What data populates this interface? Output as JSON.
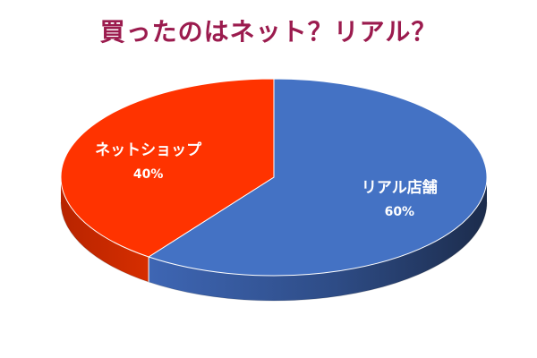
{
  "chart_data": {
    "type": "pie",
    "title": "買ったのはネット？リアル？",
    "title_color": "#9B1B4E",
    "slices": [
      {
        "label": "リアル店舗",
        "value": 60,
        "value_label": "60%",
        "color": "#4472C4"
      },
      {
        "label": "ネットショップ",
        "value": 40,
        "value_label": "40%",
        "color": "#FF3300"
      }
    ],
    "legend": "none"
  }
}
